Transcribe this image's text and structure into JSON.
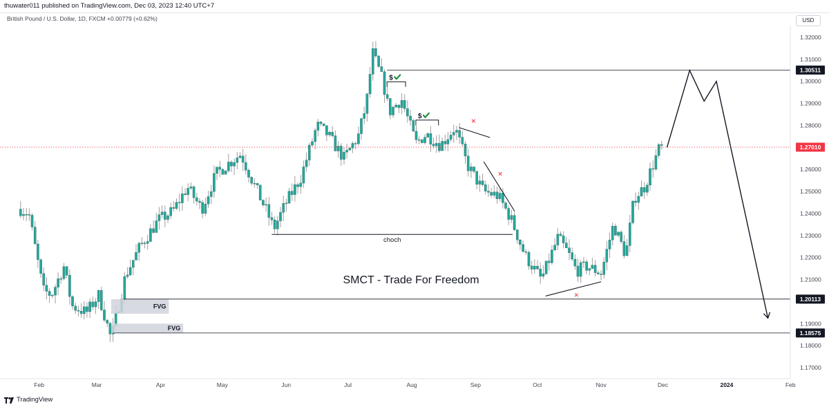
{
  "header": {
    "publisher": "thuwater011 published on TradingView.com, Dec 03, 2023 12:40 UTC+7"
  },
  "symbol_line": "British Pound / U.S. Dollar, 1D, FXCM  +0.00779 (+0.62%)",
  "currency_label": "USD",
  "footer": {
    "brand": "TradingView"
  },
  "colors": {
    "up": "#26a69a",
    "down": "#26a69a",
    "wick": "#9e9e9e",
    "current_price_line": "#f23645",
    "level_badge": "#131722",
    "current_badge": "#f23645",
    "fvg_box": "#d1d4dc",
    "annotation": "#131722",
    "marker_x": "#f23645",
    "check": "#1e8e3e"
  },
  "chart_data": {
    "type": "candlestick",
    "title": "SMCT - Trade For Freedom",
    "ylim": [
      1.165,
      1.325
    ],
    "y_ticks": [
      1.17,
      1.18,
      1.19,
      1.2,
      1.21,
      1.22,
      1.23,
      1.24,
      1.25,
      1.26,
      1.27,
      1.28,
      1.29,
      1.3,
      1.31,
      1.32
    ],
    "y_tick_labels": [
      "1.17000",
      "1.18000",
      "1.19000",
      "1.20000",
      "1.21000",
      "1.22000",
      "1.23000",
      "1.24000",
      "1.25000",
      "1.26000",
      "1.27000",
      "1.28000",
      "1.29000",
      "1.30000",
      "1.31000",
      "1.32000"
    ],
    "x_labels": [
      {
        "label": "Feb",
        "date": "2023-02-01"
      },
      {
        "label": "Mar",
        "date": "2023-03-01"
      },
      {
        "label": "Apr",
        "date": "2023-04-01"
      },
      {
        "label": "May",
        "date": "2023-05-01"
      },
      {
        "label": "Jun",
        "date": "2023-06-01"
      },
      {
        "label": "Jul",
        "date": "2023-07-01"
      },
      {
        "label": "Aug",
        "date": "2023-08-01"
      },
      {
        "label": "Sep",
        "date": "2023-09-01"
      },
      {
        "label": "Oct",
        "date": "2023-10-01"
      },
      {
        "label": "Nov",
        "date": "2023-11-01"
      },
      {
        "label": "Dec",
        "date": "2023-12-01"
      },
      {
        "label": "2024",
        "date": "2024-01-01",
        "bold": true
      },
      {
        "label": "Feb",
        "date": "2024-02-01"
      }
    ],
    "price_path": [
      [
        "2023-01-23",
        1.242
      ],
      [
        "2023-01-27",
        1.24
      ],
      [
        "2023-02-03",
        1.205
      ],
      [
        "2023-02-07",
        1.203
      ],
      [
        "2023-02-13",
        1.216
      ],
      [
        "2023-02-17",
        1.198
      ],
      [
        "2023-02-24",
        1.195
      ],
      [
        "2023-03-02",
        1.203
      ],
      [
        "2023-03-08",
        1.183
      ],
      [
        "2023-03-15",
        1.212
      ],
      [
        "2023-03-22",
        1.225
      ],
      [
        "2023-03-31",
        1.237
      ],
      [
        "2023-04-07",
        1.241
      ],
      [
        "2023-04-14",
        1.252
      ],
      [
        "2023-04-21",
        1.242
      ],
      [
        "2023-04-28",
        1.258
      ],
      [
        "2023-05-03",
        1.262
      ],
      [
        "2023-05-10",
        1.267
      ],
      [
        "2023-05-16",
        1.254
      ],
      [
        "2023-05-23",
        1.24
      ],
      [
        "2023-05-26",
        1.233
      ],
      [
        "2023-06-01",
        1.245
      ],
      [
        "2023-06-08",
        1.256
      ],
      [
        "2023-06-16",
        1.28
      ],
      [
        "2023-06-21",
        1.276
      ],
      [
        "2023-06-29",
        1.265
      ],
      [
        "2023-07-06",
        1.275
      ],
      [
        "2023-07-10",
        1.29
      ],
      [
        "2023-07-13",
        1.313
      ],
      [
        "2023-07-18",
        1.3
      ],
      [
        "2023-07-21",
        1.286
      ],
      [
        "2023-07-27",
        1.292
      ],
      [
        "2023-08-03",
        1.272
      ],
      [
        "2023-08-08",
        1.276
      ],
      [
        "2023-08-15",
        1.271
      ],
      [
        "2023-08-22",
        1.279
      ],
      [
        "2023-08-28",
        1.262
      ],
      [
        "2023-09-05",
        1.25
      ],
      [
        "2023-09-12",
        1.248
      ],
      [
        "2023-09-18",
        1.238
      ],
      [
        "2023-09-25",
        1.221
      ],
      [
        "2023-10-03",
        1.21
      ],
      [
        "2023-10-11",
        1.229
      ],
      [
        "2023-10-16",
        1.222
      ],
      [
        "2023-10-20",
        1.214
      ],
      [
        "2023-10-25",
        1.216
      ],
      [
        "2023-11-01",
        1.213
      ],
      [
        "2023-11-07",
        1.235
      ],
      [
        "2023-11-13",
        1.221
      ],
      [
        "2023-11-17",
        1.247
      ],
      [
        "2023-11-22",
        1.252
      ],
      [
        "2023-11-29",
        1.269
      ],
      [
        "2023-12-01",
        1.27
      ]
    ],
    "price_levels": [
      {
        "name": "high-level",
        "value": 1.30511,
        "label": "1.30511",
        "from_date": "2023-07-20"
      },
      {
        "name": "current-price",
        "value": 1.2701,
        "label": "1.27010",
        "style": "dotted"
      },
      {
        "name": "low-level-1",
        "value": 1.20113,
        "label": "1.20113",
        "from_date": "2023-03-14"
      },
      {
        "name": "low-level-2",
        "value": 1.18575,
        "label": "1.18575",
        "from_date": "2023-03-09"
      }
    ],
    "annotations": {
      "choch": {
        "label": "choch",
        "value": 1.2305,
        "from_date": "2023-05-25",
        "to_date": "2023-09-19"
      },
      "fvg_zones": [
        {
          "label": "FVG",
          "from_date": "2023-03-08",
          "to_date": "2023-04-05",
          "top": 1.2011,
          "bottom": 1.1945
        },
        {
          "label": "FVG",
          "from_date": "2023-03-08",
          "to_date": "2023-04-12",
          "top": 1.19,
          "bottom": 1.1857
        }
      ],
      "liquidity_sweeps": [
        {
          "label": "$",
          "from_date": "2023-07-20",
          "to_date": "2023-07-29",
          "value": 1.2998,
          "lower": 1.2975
        },
        {
          "label": "$",
          "from_date": "2023-08-03",
          "to_date": "2023-08-14",
          "value": 1.2824,
          "lower": 1.28
        }
      ],
      "trendlines": [
        {
          "name": "trendline-1",
          "from": [
            "2023-08-24",
            1.279
          ],
          "to": [
            "2023-09-08",
            1.2745
          ]
        },
        {
          "name": "trendline-2",
          "from": [
            "2023-09-05",
            1.2635
          ],
          "to": [
            "2023-09-20",
            1.241
          ]
        },
        {
          "name": "support-trendline",
          "from": [
            "2023-10-05",
            1.2025
          ],
          "to": [
            "2023-11-01",
            1.209
          ]
        }
      ],
      "x_markers": [
        {
          "date": "2023-08-31",
          "value": 1.282
        },
        {
          "date": "2023-09-13",
          "value": 1.258
        },
        {
          "date": "2023-10-20",
          "value": 1.203
        }
      ],
      "projection": [
        [
          "2023-12-03",
          1.27
        ],
        [
          "2023-12-14",
          1.305
        ],
        [
          "2023-12-21",
          1.291
        ],
        [
          "2023-12-27",
          1.3
        ],
        [
          "2024-01-21",
          1.1925
        ]
      ]
    }
  }
}
